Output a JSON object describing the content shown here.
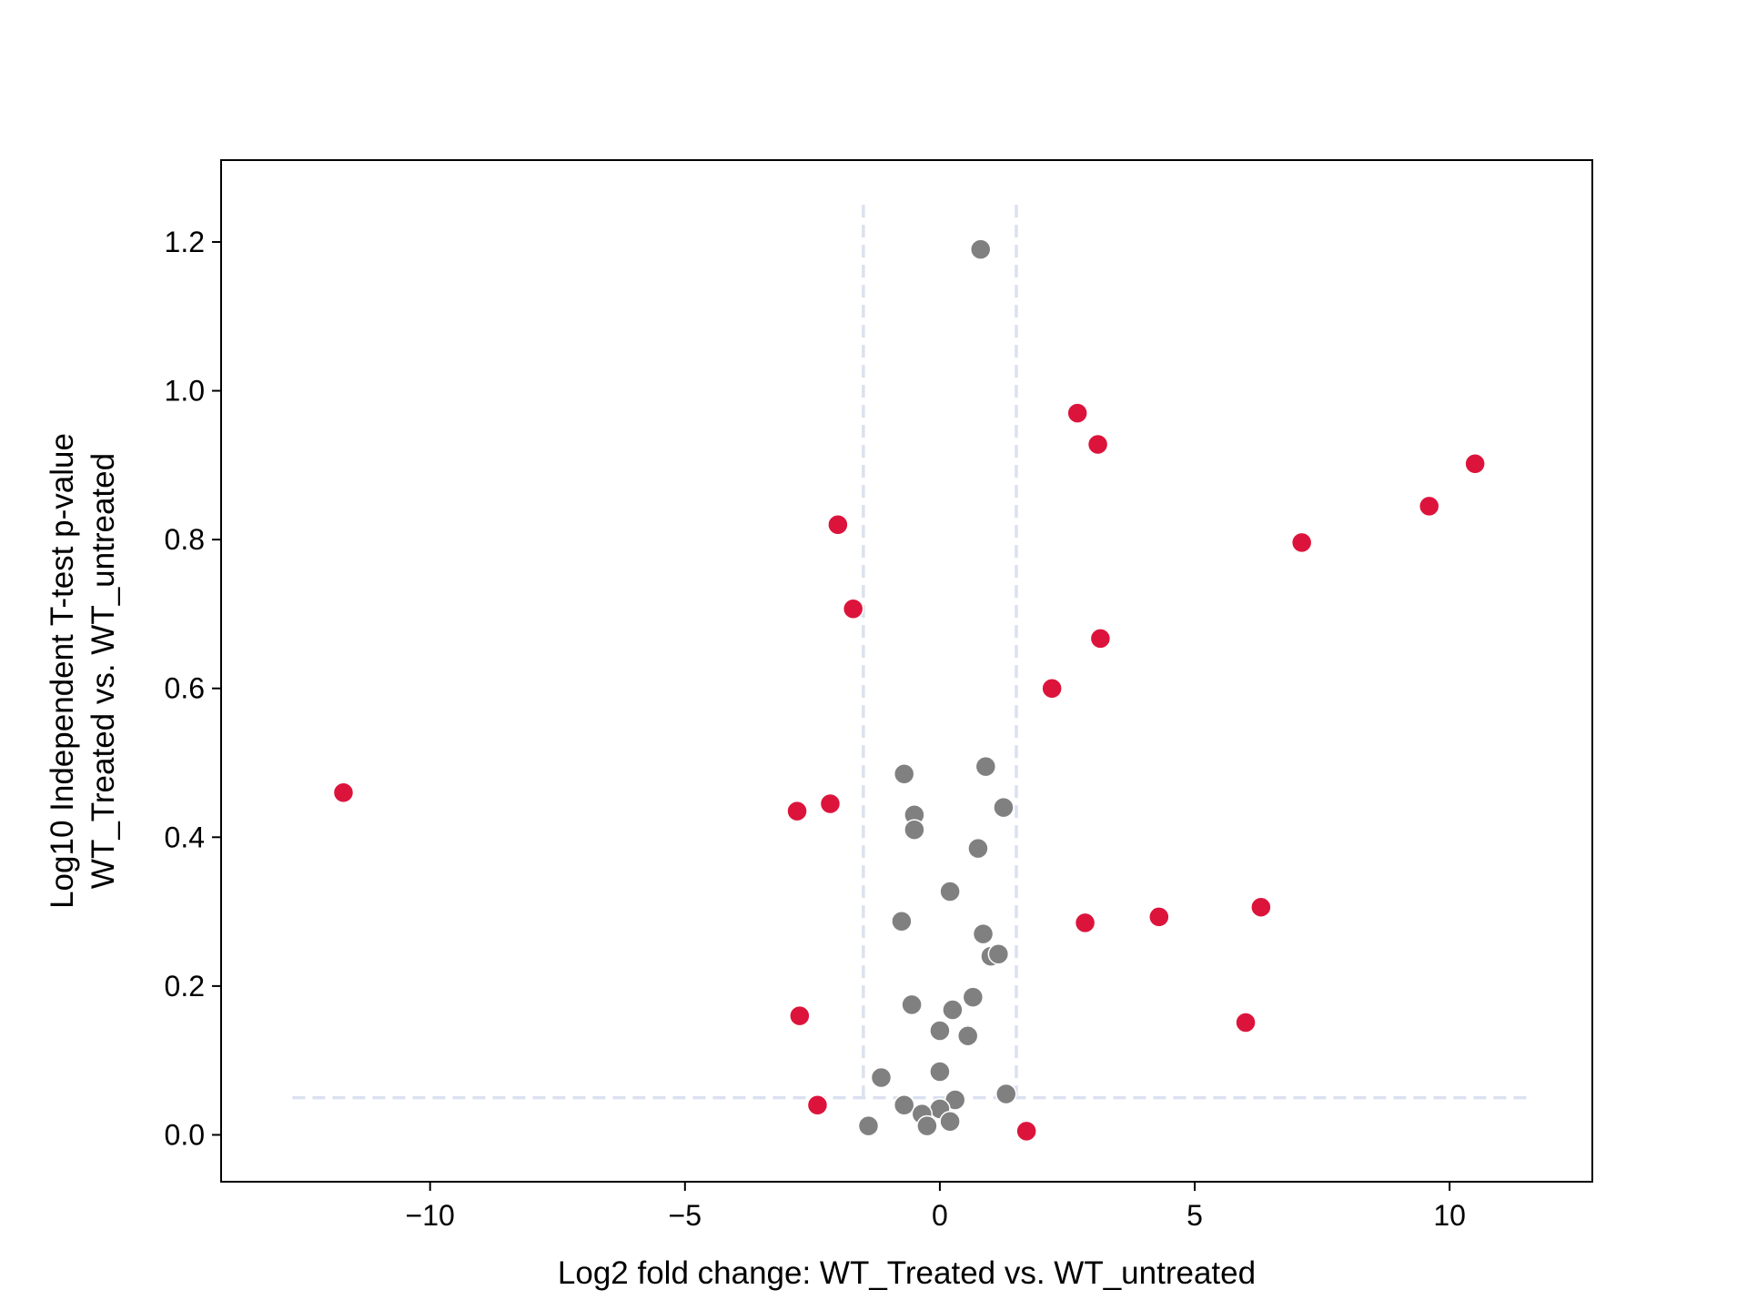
{
  "chart_data": {
    "type": "scatter",
    "title": "",
    "xlabel": "Log2 fold change: WT_Treated vs. WT_untreated",
    "ylabel_lines": [
      "Log10 Independent T-test p-value",
      "WT_Treated vs. WT_untreated"
    ],
    "xlim": [
      -14.1,
      12.8
    ],
    "ylim": [
      -0.063,
      1.31
    ],
    "xticks": [
      -10,
      -5,
      0,
      5,
      10
    ],
    "xtick_labels": [
      "−10",
      "−5",
      "0",
      "5",
      "10"
    ],
    "yticks": [
      0.0,
      0.2,
      0.4,
      0.6,
      0.8,
      1.0,
      1.2
    ],
    "ytick_labels": [
      "0.0",
      "0.2",
      "0.4",
      "0.6",
      "0.8",
      "1.0",
      "1.2"
    ],
    "grid": false,
    "legend": "none",
    "thresholds": {
      "vertical_x": [
        -1.5,
        1.5
      ],
      "vertical_y_range": [
        0.05,
        1.25
      ],
      "horizontal_y": 0.05,
      "horizontal_x_range": [
        -12.7,
        11.6
      ],
      "color": "#dbe1f0"
    },
    "series": [
      {
        "color": "#dc143c",
        "points": [
          [
            -11.7,
            0.46
          ],
          [
            -2.8,
            0.435
          ],
          [
            -2.15,
            0.445
          ],
          [
            -2.0,
            0.82
          ],
          [
            -1.7,
            0.707
          ],
          [
            -2.75,
            0.16
          ],
          [
            -2.4,
            0.04
          ],
          [
            1.7,
            0.005
          ],
          [
            2.2,
            0.6
          ],
          [
            2.7,
            0.97
          ],
          [
            3.1,
            0.928
          ],
          [
            3.15,
            0.667
          ],
          [
            2.85,
            0.285
          ],
          [
            4.3,
            0.293
          ],
          [
            6.3,
            0.306
          ],
          [
            6.0,
            0.151
          ],
          [
            7.1,
            0.796
          ],
          [
            9.6,
            0.845
          ],
          [
            10.5,
            0.902
          ]
        ]
      },
      {
        "color": "#808080",
        "points": [
          [
            0.8,
            1.19
          ],
          [
            0.9,
            0.495
          ],
          [
            -0.7,
            0.485
          ],
          [
            1.25,
            0.44
          ],
          [
            -0.5,
            0.43
          ],
          [
            -0.5,
            0.41
          ],
          [
            0.75,
            0.385
          ],
          [
            0.2,
            0.327
          ],
          [
            -0.75,
            0.287
          ],
          [
            0.85,
            0.27
          ],
          [
            1.0,
            0.24
          ],
          [
            1.15,
            0.243
          ],
          [
            -0.55,
            0.175
          ],
          [
            0.65,
            0.185
          ],
          [
            0.25,
            0.168
          ],
          [
            0.0,
            0.14
          ],
          [
            0.55,
            0.133
          ],
          [
            -1.15,
            0.077
          ],
          [
            0.0,
            0.085
          ],
          [
            1.3,
            0.055
          ],
          [
            -0.7,
            0.04
          ],
          [
            0.3,
            0.047
          ],
          [
            0.0,
            0.035
          ],
          [
            -0.35,
            0.028
          ],
          [
            0.2,
            0.018
          ],
          [
            -0.25,
            0.012
          ],
          [
            -1.4,
            0.012
          ]
        ]
      }
    ]
  }
}
